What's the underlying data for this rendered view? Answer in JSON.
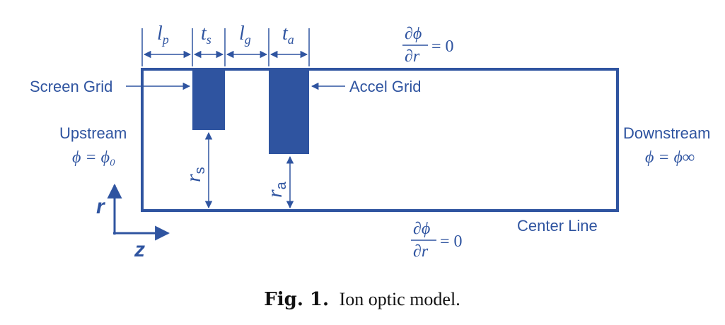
{
  "labels": {
    "screen_grid": "Screen Grid",
    "accel_grid": "Accel Grid",
    "upstream": "Upstream",
    "upstream_bc": "ϕ = ϕ₀",
    "downstream": "Downstream",
    "downstream_bc": "ϕ = ϕ∞",
    "center_line": "Center Line"
  },
  "dimensions": {
    "l_p": {
      "main": "l",
      "sub": "p"
    },
    "t_s": {
      "main": "t",
      "sub": "s"
    },
    "l_g": {
      "main": "l",
      "sub": "g"
    },
    "t_a": {
      "main": "t",
      "sub": "a"
    },
    "r_s": {
      "main": "r",
      "sub": "s"
    },
    "r_a": {
      "main": "r",
      "sub": "a"
    }
  },
  "boundary_conditions": {
    "top": {
      "numerator": "∂ϕ",
      "denominator": "∂r",
      "rhs": "= 0"
    },
    "bottom": {
      "numerator": "∂ϕ",
      "denominator": "∂r",
      "rhs": "= 0"
    }
  },
  "axes": {
    "r": "r",
    "z": "z"
  },
  "caption": {
    "label": "Fig. 1.",
    "text": "Ion optic model."
  },
  "colors": {
    "diagram": "#2f54a0",
    "caption": "#111111"
  }
}
